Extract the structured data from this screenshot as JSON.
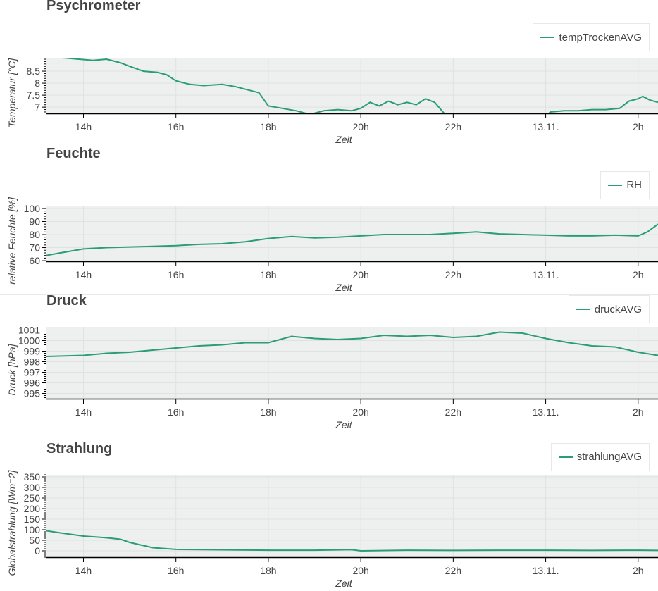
{
  "colors": {
    "line": "#2a9d76",
    "plot_bg": "#eef0f0",
    "grid": "#dfe2e2",
    "axis": "#000000"
  },
  "chart_data": [
    {
      "type": "line",
      "title": "Psychrometer",
      "xlabel": "Zeit",
      "ylabel": "Temperatur [°C]",
      "series": [
        {
          "name": "tempTrockenAVG",
          "x": [
            13.2,
            13.6,
            13.9,
            14.2,
            14.5,
            14.8,
            15.0,
            15.3,
            15.6,
            15.8,
            16.0,
            16.3,
            16.6,
            17.0,
            17.3,
            17.6,
            17.8,
            18.0,
            18.3,
            18.6,
            18.9,
            19.2,
            19.5,
            19.8,
            20.0,
            20.2,
            20.4,
            20.6,
            20.8,
            21.0,
            21.2,
            21.4,
            21.6,
            21.8,
            22.0,
            22.5,
            22.9,
            23.0,
            23.5,
            24.0,
            24.1,
            24.4,
            24.7,
            25.0,
            25.3,
            25.6,
            25.8,
            26.0,
            26.1,
            26.25,
            26.43
          ],
          "y": [
            9.1,
            9.05,
            9.0,
            8.95,
            9.0,
            8.85,
            8.7,
            8.5,
            8.45,
            8.35,
            8.1,
            7.95,
            7.9,
            7.95,
            7.85,
            7.7,
            7.6,
            7.05,
            6.95,
            6.85,
            6.7,
            6.85,
            6.9,
            6.85,
            6.95,
            7.2,
            7.05,
            7.25,
            7.1,
            7.2,
            7.1,
            7.35,
            7.2,
            6.75,
            6.6,
            6.5,
            6.75,
            6.6,
            6.6,
            6.6,
            6.8,
            6.85,
            6.85,
            6.9,
            6.9,
            6.95,
            7.25,
            7.35,
            7.45,
            7.3,
            7.2
          ]
        }
      ],
      "ylim": [
        6.74,
        9.03
      ],
      "yticks": [
        7,
        7.5,
        8,
        8.5
      ],
      "ytick_labels": [
        "7",
        "7.5",
        "8",
        "8.5"
      ],
      "xlim": [
        13.2,
        26.43
      ],
      "xticks": [
        14,
        16,
        18,
        20,
        22,
        24,
        26
      ],
      "xtick_labels": [
        "14h",
        "16h",
        "18h",
        "20h",
        "22h",
        "13.11.",
        "2h"
      ],
      "grid": true,
      "legend": "top-right"
    },
    {
      "type": "line",
      "title": "Feuchte",
      "xlabel": "Zeit",
      "ylabel": "relative Feuchte [%]",
      "series": [
        {
          "name": "RH",
          "x": [
            13.2,
            13.5,
            14.0,
            14.5,
            15.0,
            15.5,
            16.0,
            16.5,
            17.0,
            17.5,
            18.0,
            18.5,
            19.0,
            19.5,
            20.0,
            20.5,
            21.0,
            21.5,
            22.0,
            22.5,
            23.0,
            23.5,
            24.0,
            24.5,
            25.0,
            25.5,
            26.0,
            26.2,
            26.43
          ],
          "y": [
            64,
            66,
            69,
            70,
            70.5,
            71,
            71.5,
            72.5,
            73,
            74.5,
            77,
            78.5,
            77.5,
            78,
            79,
            80,
            80,
            80,
            81,
            82,
            80.5,
            80,
            79.5,
            79,
            79,
            79.5,
            79,
            82,
            88
          ]
        }
      ],
      "ylim": [
        59.5,
        101.6
      ],
      "yticks": [
        60,
        70,
        80,
        90,
        100
      ],
      "ytick_labels": [
        "60",
        "70",
        "80",
        "90",
        "100"
      ],
      "xlim": [
        13.2,
        26.43
      ],
      "xticks": [
        14,
        16,
        18,
        20,
        22,
        24,
        26
      ],
      "xtick_labels": [
        "14h",
        "16h",
        "18h",
        "20h",
        "22h",
        "13.11.",
        "2h"
      ],
      "grid": true,
      "legend": "top-right"
    },
    {
      "type": "line",
      "title": "Druck",
      "xlabel": "Zeit",
      "ylabel": "Druck [hPa]",
      "series": [
        {
          "name": "druckAVG",
          "x": [
            13.2,
            14.0,
            14.5,
            15.0,
            15.5,
            16.0,
            16.5,
            17.0,
            17.5,
            18.0,
            18.5,
            19.0,
            19.5,
            20.0,
            20.5,
            21.0,
            21.5,
            22.0,
            22.5,
            23.0,
            23.5,
            24.0,
            24.5,
            25.0,
            25.5,
            26.0,
            26.43
          ],
          "y": [
            998.5,
            998.6,
            998.8,
            998.9,
            999.1,
            999.3,
            999.5,
            999.6,
            999.8,
            999.8,
            1000.4,
            1000.2,
            1000.1,
            1000.2,
            1000.5,
            1000.4,
            1000.5,
            1000.3,
            1000.4,
            1000.8,
            1000.7,
            1000.2,
            999.8,
            999.5,
            999.4,
            998.9,
            998.6
          ]
        }
      ],
      "ylim": [
        994.5,
        1001.3
      ],
      "yticks": [
        995,
        996,
        997,
        998,
        999,
        1000,
        1001
      ],
      "ytick_labels": [
        "995",
        "996",
        "997",
        "998",
        "999",
        "1000",
        "1001"
      ],
      "xlim": [
        13.2,
        26.43
      ],
      "xticks": [
        14,
        16,
        18,
        20,
        22,
        24,
        26
      ],
      "xtick_labels": [
        "14h",
        "16h",
        "18h",
        "20h",
        "22h",
        "13.11.",
        "2h"
      ],
      "grid": true,
      "legend": "top-right"
    },
    {
      "type": "line",
      "title": "Strahlung",
      "xlabel": "Zeit",
      "ylabel": "Globalstrahlung [Wm⁻2]",
      "series": [
        {
          "name": "strahlungAVG",
          "x": [
            13.2,
            13.5,
            14.0,
            14.5,
            14.8,
            15.0,
            15.5,
            16.0,
            17.0,
            18.0,
            19.0,
            19.8,
            20.0,
            21.0,
            22.0,
            23.0,
            24.0,
            25.0,
            26.0,
            26.43
          ],
          "y": [
            95,
            85,
            70,
            62,
            55,
            40,
            15,
            7,
            5,
            3,
            3,
            6,
            0,
            3,
            2,
            3,
            3,
            2,
            3,
            2
          ]
        }
      ],
      "ylim": [
        -30,
        360
      ],
      "yticks": [
        0,
        50,
        100,
        150,
        200,
        250,
        300,
        350
      ],
      "ytick_labels": [
        "0",
        "50",
        "100",
        "150",
        "200",
        "250",
        "300",
        "350"
      ],
      "xlim": [
        13.2,
        26.43
      ],
      "xticks": [
        14,
        16,
        18,
        20,
        22,
        24,
        26
      ],
      "xtick_labels": [
        "14h",
        "16h",
        "18h",
        "20h",
        "22h",
        "13.11.",
        "2h"
      ],
      "grid": true,
      "legend": "top-right"
    }
  ]
}
